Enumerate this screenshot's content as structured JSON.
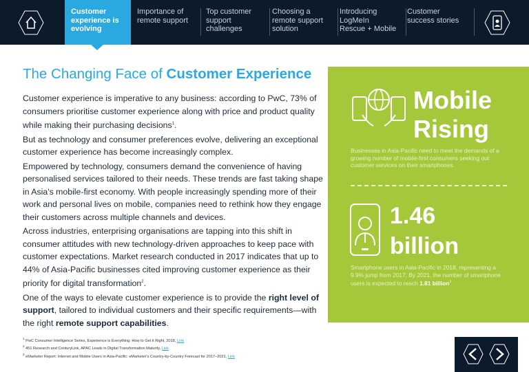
{
  "nav": {
    "home_icon": "home-icon",
    "tabs": [
      {
        "label": "Customer experience is evolving",
        "active": true
      },
      {
        "label": "Importance of remote support"
      },
      {
        "label": "Top customer support challenges"
      },
      {
        "label": "Choosing a remote support solution"
      },
      {
        "label": "Introducing LogMeIn Rescue + Mobile"
      },
      {
        "label": "Customer success stories"
      }
    ],
    "right_icon": "mobile-support-icon"
  },
  "title": {
    "part1": "The Changing Face of ",
    "part2": "Customer Experience"
  },
  "body": {
    "p1": "Customer experience is imperative to any business: according to PwC, 73% of consumers prioritise customer experience along with price and product quality while making their purchasing decisions",
    "p1_sup": "1",
    "p2": "But as technology and consumer preferences evolve, delivering an exceptional customer experience has become increasingly complex.",
    "p3": "Empowered by technology, consumers demand the convenience of having personalised services tailored to their needs. These trends are fast taking shape in Asia's mobile-first economy. With people increasingly spending more of their work and personal lives on mobile, companies need to rethink how they engage their customers across multiple channels and devices.",
    "p4": "Across industries, enterprising organisations are tapping into this shift in consumer attitudes with new technology-driven approaches to keep pace with customer expectations. Market research conducted in 2017 indicates that up to 44% of Asia-Pacific businesses cited improving customer experience as their priority for digital transformation",
    "p4_sup": "2",
    "p5a": "One of the ways to elevate customer experience is to provide the ",
    "p5b": "right level of support",
    "p5c": ", tailored to individual customers and their specific requirements—with the right ",
    "p5d": "remote support capabilities",
    "p5e": "."
  },
  "panel": {
    "color": "#a5c83a",
    "heading1": "Mobile",
    "heading2": "Rising",
    "text1": "Businesses in Asia-Pacific need to meet the demands of a growing number of mobile-first consumers seeking out customer services on their smartphones.",
    "stat1": "1.46",
    "stat2": "billion",
    "text2": "Smartphone users in Asia-Pacific in 2018, representing a 9.9% jump from 2017. By 2021, the number of smartphone users is expected to reach ",
    "text2_bold": "1.81 billion",
    "text2_sup": "3"
  },
  "footnotes": [
    {
      "num": "1",
      "text": "PwC Consumer Intelligence Series, Experience is Everything: How to Get it Right, 2018, ",
      "link": "Link"
    },
    {
      "num": "2",
      "text": "451 Research and CenturyLink,  APAC Leads in Digital Transformation Maturity, ",
      "link": "Link"
    },
    {
      "num": "3",
      "text": "eMarketer Report: Internet and Mobile Users in Asia-Pacific: eMarketer's Country-by-Country Forecast for 2017–2021, ",
      "link": "Link"
    }
  ],
  "pager": {
    "prev": "previous-page",
    "next": "next-page"
  }
}
